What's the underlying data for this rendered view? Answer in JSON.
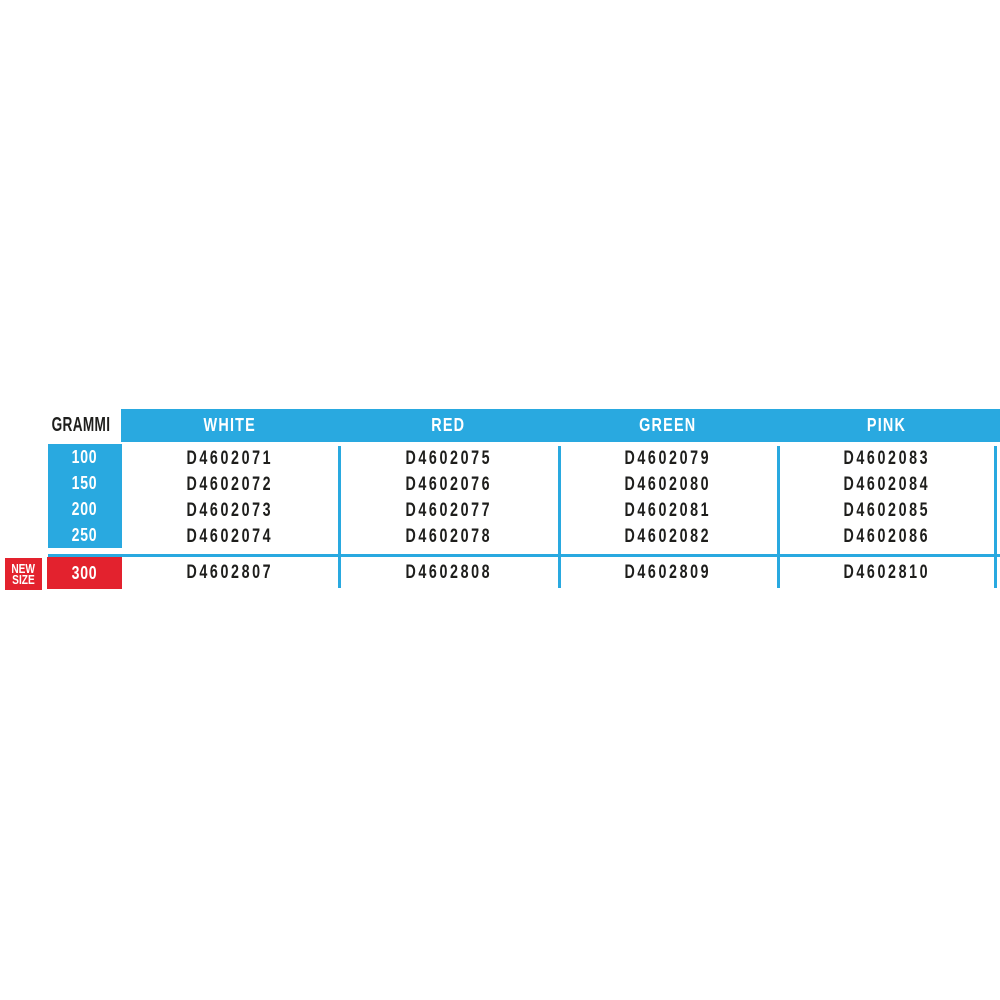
{
  "table": {
    "corner_label": "GRAMMI",
    "columns": [
      "WHITE",
      "RED",
      "GREEN",
      "PINK"
    ],
    "rows": [
      {
        "grammi": "100",
        "codes": [
          "D4602071",
          "D4602075",
          "D4602079",
          "D4602083"
        ]
      },
      {
        "grammi": "150",
        "codes": [
          "D4602072",
          "D4602076",
          "D4602080",
          "D4602084"
        ]
      },
      {
        "grammi": "200",
        "codes": [
          "D4602073",
          "D4602077",
          "D4602081",
          "D4602085"
        ]
      },
      {
        "grammi": "250",
        "codes": [
          "D4602074",
          "D4602078",
          "D4602082",
          "D4602086"
        ]
      }
    ],
    "new_size_row": {
      "badge_lines": [
        "NEW",
        "SIZE"
      ],
      "grammi": "300",
      "codes": [
        "D4602807",
        "D4602808",
        "D4602809",
        "D4602810"
      ]
    },
    "colors": {
      "cyan": "#29A9E0",
      "red": "#E3222E",
      "text": "#1E1E1C",
      "light_text": "#FFFFFF"
    }
  }
}
